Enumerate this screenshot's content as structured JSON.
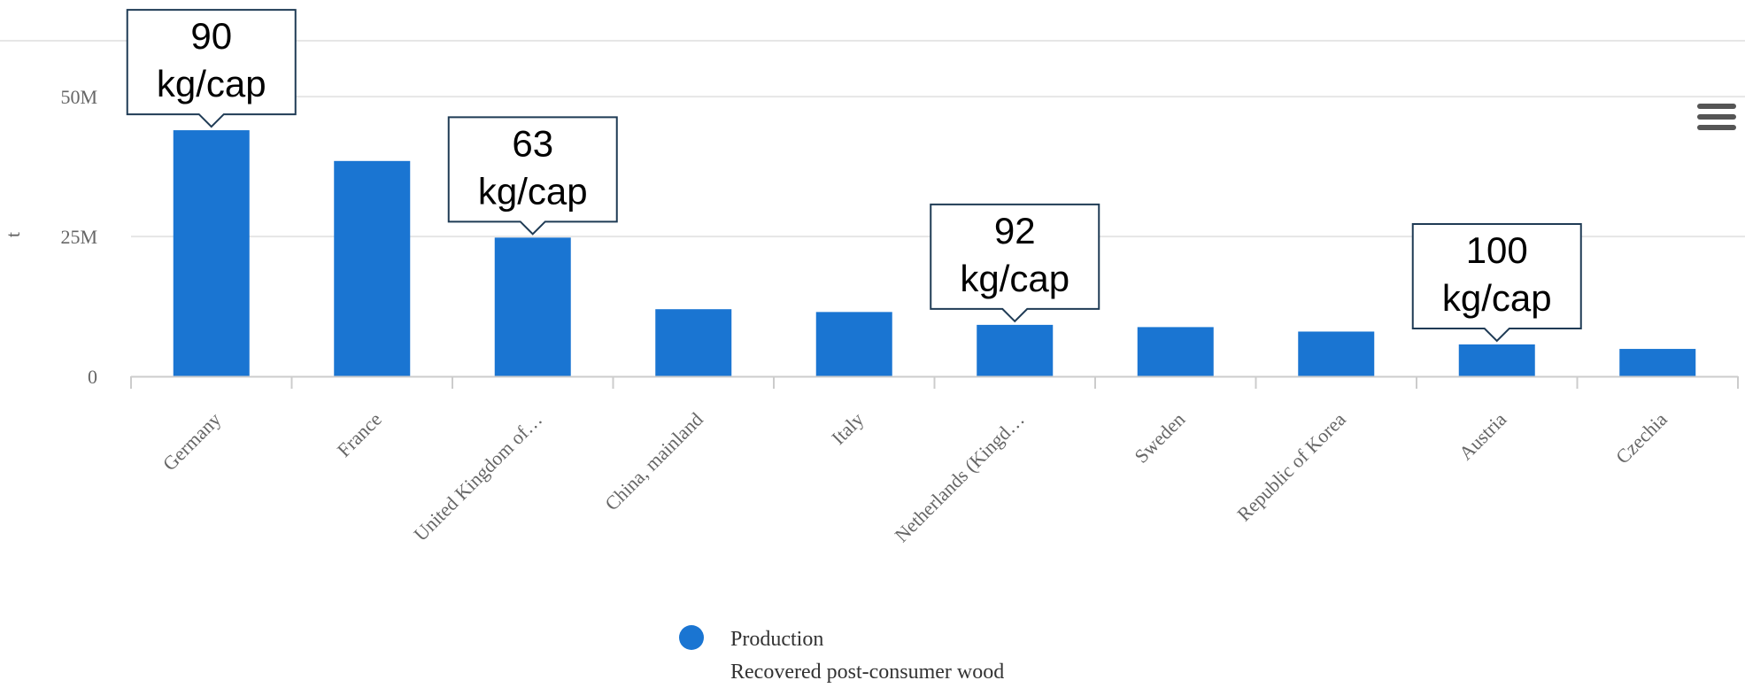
{
  "chart_data": {
    "type": "bar",
    "ylabel": "t",
    "ylim": [
      0,
      60000000
    ],
    "yticks": [
      {
        "value": 0,
        "label": "0"
      },
      {
        "value": 25000000,
        "label": "25M"
      },
      {
        "value": 50000000,
        "label": "50M"
      }
    ],
    "categories": [
      "Germany",
      "France",
      "United Kingdom of…",
      "China, mainland",
      "Italy",
      "Netherlands (Kingd…",
      "Sweden",
      "Republic of Korea",
      "Austria",
      "Czechia"
    ],
    "series": [
      {
        "name": "Production",
        "values": [
          44000000,
          38500000,
          24800000,
          12000000,
          11500000,
          9200000,
          8800000,
          8000000,
          5700000,
          4900000
        ]
      }
    ],
    "legend": {
      "placement": "bottom",
      "title": "Production",
      "subtitle": "Recovered post-consumer wood"
    },
    "annotations": [
      {
        "category_index": 0,
        "lines": [
          "90",
          "kg/cap"
        ]
      },
      {
        "category_index": 2,
        "lines": [
          "63",
          "kg/cap"
        ]
      },
      {
        "category_index": 5,
        "lines": [
          "92",
          "kg/cap"
        ]
      },
      {
        "category_index": 8,
        "lines": [
          "100",
          "kg/cap"
        ]
      }
    ],
    "grid": true,
    "colors": {
      "bar": "#1a75d2",
      "grid": "#e6e6e6",
      "axis": "#cccccc"
    }
  },
  "toolbar": {
    "menu_icon": "hamburger-menu-icon"
  }
}
